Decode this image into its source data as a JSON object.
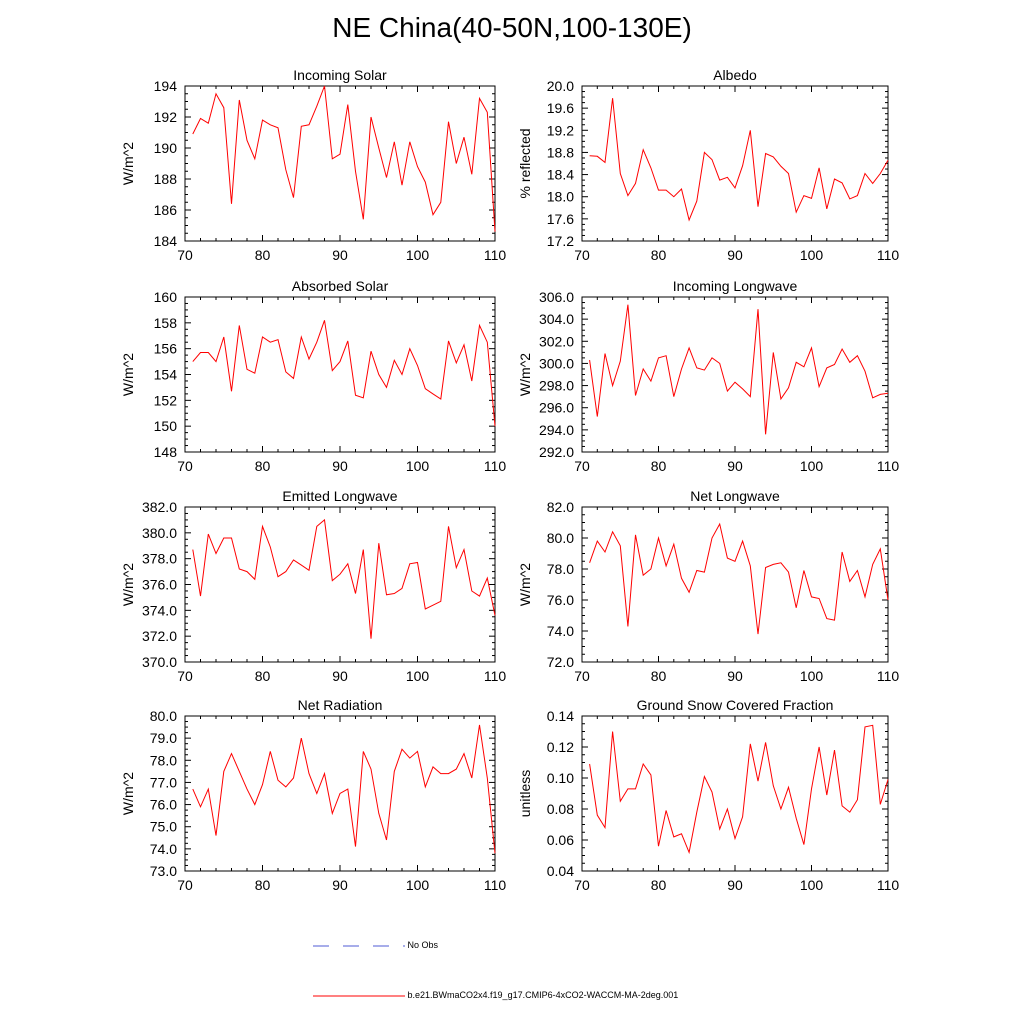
{
  "title": "NE China(40-50N,100-130E)",
  "colors": {
    "series": "#ff0000",
    "obs": "#4f5bd5",
    "axis": "#000000"
  },
  "legend": [
    {
      "label": "No Obs",
      "style": "dashed",
      "color": "#4f5bd5"
    },
    {
      "label": "b.e21.BWmaCO2x4.f19_g17.CMIP6-4xCO2-WACCM-MA-2deg.001",
      "style": "solid",
      "color": "#ff0000"
    }
  ],
  "chart_data": [
    {
      "type": "line",
      "title": "Incoming Solar",
      "ylabel": "W/m^2",
      "xlim": [
        70,
        110
      ],
      "ylim": [
        184,
        194
      ],
      "xticks": [
        "70",
        "80",
        "90",
        "100",
        "110"
      ],
      "yticks": [
        "184",
        "186",
        "188",
        "190",
        "192",
        "194"
      ],
      "x": [
        71,
        72,
        73,
        74,
        75,
        76,
        77,
        78,
        79,
        80,
        81,
        82,
        83,
        84,
        85,
        86,
        87,
        88,
        89,
        90,
        91,
        92,
        93,
        94,
        95,
        96,
        97,
        98,
        99,
        100,
        101,
        102,
        103,
        104,
        105,
        106,
        107,
        108,
        109,
        110
      ],
      "series": [
        {
          "name": "b.e21.BWmaCO2x4.f19_g17.CMIP6-4xCO2-WACCM-MA-2deg.001",
          "values": [
            190.9,
            191.9,
            191.6,
            193.5,
            192.6,
            186.4,
            193.1,
            190.5,
            189.3,
            191.8,
            191.5,
            191.3,
            188.6,
            186.8,
            191.4,
            191.5,
            192.7,
            194.0,
            189.3,
            189.6,
            192.8,
            188.5,
            185.4,
            192.0,
            190.0,
            188.1,
            190.4,
            187.6,
            190.4,
            188.8,
            187.8,
            185.7,
            186.5,
            191.7,
            189.0,
            190.7,
            188.3,
            193.2,
            192.3,
            184.6
          ]
        }
      ]
    },
    {
      "type": "line",
      "title": "Albedo",
      "ylabel": "% reflected",
      "xlim": [
        70,
        110
      ],
      "ylim": [
        17.2,
        20.0
      ],
      "xticks": [
        "70",
        "80",
        "90",
        "100",
        "110"
      ],
      "yticks": [
        "17.2",
        "17.6",
        "18.0",
        "18.4",
        "18.8",
        "19.2",
        "19.6",
        "20.0"
      ],
      "x": [
        71,
        72,
        73,
        74,
        75,
        76,
        77,
        78,
        79,
        80,
        81,
        82,
        83,
        84,
        85,
        86,
        87,
        88,
        89,
        90,
        91,
        92,
        93,
        94,
        95,
        96,
        97,
        98,
        99,
        100,
        101,
        102,
        103,
        104,
        105,
        106,
        107,
        108,
        109,
        110
      ],
      "series": [
        {
          "name": "b.e21.BWmaCO2x4.f19_g17.CMIP6-4xCO2-WACCM-MA-2deg.001",
          "values": [
            18.74,
            18.73,
            18.62,
            19.78,
            18.42,
            18.02,
            18.24,
            18.85,
            18.52,
            18.12,
            18.12,
            18.0,
            18.14,
            17.58,
            17.92,
            18.8,
            18.67,
            18.3,
            18.35,
            18.16,
            18.56,
            19.2,
            17.82,
            18.78,
            18.72,
            18.55,
            18.42,
            17.72,
            18.02,
            17.97,
            18.52,
            17.78,
            18.32,
            18.25,
            17.96,
            18.02,
            18.42,
            18.24,
            18.42,
            18.66
          ]
        }
      ]
    },
    {
      "type": "line",
      "title": "Absorbed Solar",
      "ylabel": "W/m^2",
      "xlim": [
        70,
        110
      ],
      "ylim": [
        148,
        160
      ],
      "xticks": [
        "70",
        "80",
        "90",
        "100",
        "110"
      ],
      "yticks": [
        "148",
        "150",
        "152",
        "154",
        "156",
        "158",
        "160"
      ],
      "x": [
        71,
        72,
        73,
        74,
        75,
        76,
        77,
        78,
        79,
        80,
        81,
        82,
        83,
        84,
        85,
        86,
        87,
        88,
        89,
        90,
        91,
        92,
        93,
        94,
        95,
        96,
        97,
        98,
        99,
        100,
        101,
        102,
        103,
        104,
        105,
        106,
        107,
        108,
        109,
        110
      ],
      "series": [
        {
          "name": "b.e21.BWmaCO2x4.f19_g17.CMIP6-4xCO2-WACCM-MA-2deg.001",
          "values": [
            155.0,
            155.7,
            155.7,
            155.0,
            156.9,
            152.7,
            157.8,
            154.4,
            154.1,
            156.9,
            156.5,
            156.7,
            154.2,
            153.7,
            156.9,
            155.2,
            156.5,
            158.2,
            154.3,
            155.0,
            156.6,
            152.4,
            152.2,
            155.8,
            154.0,
            153.0,
            155.1,
            154.0,
            156.0,
            154.7,
            152.9,
            152.5,
            152.1,
            156.6,
            154.9,
            156.3,
            153.5,
            157.8,
            156.5,
            150.0
          ]
        }
      ]
    },
    {
      "type": "line",
      "title": "Incoming Longwave",
      "ylabel": "W/m^2",
      "xlim": [
        70,
        110
      ],
      "ylim": [
        292.0,
        306.0
      ],
      "xticks": [
        "70",
        "80",
        "90",
        "100",
        "110"
      ],
      "yticks": [
        "292.0",
        "294.0",
        "296.0",
        "298.0",
        "300.0",
        "302.0",
        "304.0",
        "306.0"
      ],
      "x": [
        71,
        72,
        73,
        74,
        75,
        76,
        77,
        78,
        79,
        80,
        81,
        82,
        83,
        84,
        85,
        86,
        87,
        88,
        89,
        90,
        91,
        92,
        93,
        94,
        95,
        96,
        97,
        98,
        99,
        100,
        101,
        102,
        103,
        104,
        105,
        106,
        107,
        108,
        109,
        110
      ],
      "series": [
        {
          "name": "b.e21.BWmaCO2x4.f19_g17.CMIP6-4xCO2-WACCM-MA-2deg.001",
          "values": [
            300.3,
            295.2,
            300.9,
            298.0,
            300.2,
            305.3,
            297.1,
            299.5,
            298.4,
            300.5,
            300.7,
            297.0,
            299.5,
            301.4,
            299.6,
            299.4,
            300.5,
            300.0,
            297.5,
            298.3,
            297.7,
            297.0,
            304.9,
            293.6,
            301.0,
            296.8,
            297.8,
            300.1,
            299.7,
            301.4,
            297.9,
            299.6,
            299.9,
            301.3,
            300.1,
            300.7,
            299.3,
            296.9,
            297.2,
            297.3
          ]
        }
      ]
    },
    {
      "type": "line",
      "title": "Emitted Longwave",
      "ylabel": "W/m^2",
      "xlim": [
        70,
        110
      ],
      "ylim": [
        370.0,
        382.0
      ],
      "xticks": [
        "70",
        "80",
        "90",
        "100",
        "110"
      ],
      "yticks": [
        "370.0",
        "372.0",
        "374.0",
        "376.0",
        "378.0",
        "380.0",
        "382.0"
      ],
      "x": [
        71,
        72,
        73,
        74,
        75,
        76,
        77,
        78,
        79,
        80,
        81,
        82,
        83,
        84,
        85,
        86,
        87,
        88,
        89,
        90,
        91,
        92,
        93,
        94,
        95,
        96,
        97,
        98,
        99,
        100,
        101,
        102,
        103,
        104,
        105,
        106,
        107,
        108,
        109,
        110
      ],
      "series": [
        {
          "name": "b.e21.BWmaCO2x4.f19_g17.CMIP6-4xCO2-WACCM-MA-2deg.001",
          "values": [
            378.7,
            375.1,
            379.9,
            378.4,
            379.6,
            379.6,
            377.2,
            377.0,
            376.4,
            380.5,
            378.9,
            376.6,
            377.0,
            377.9,
            377.5,
            377.1,
            380.5,
            381.0,
            376.3,
            376.8,
            377.6,
            375.3,
            378.7,
            371.8,
            379.2,
            375.2,
            375.3,
            375.7,
            377.6,
            377.7,
            374.1,
            374.4,
            374.7,
            380.5,
            377.3,
            378.7,
            375.5,
            375.1,
            376.5,
            373.6
          ]
        }
      ]
    },
    {
      "type": "line",
      "title": "Net Longwave",
      "ylabel": "W/m^2",
      "xlim": [
        70,
        110
      ],
      "ylim": [
        72.0,
        82.0
      ],
      "xticks": [
        "70",
        "80",
        "90",
        "100",
        "110"
      ],
      "yticks": [
        "72.0",
        "74.0",
        "76.0",
        "78.0",
        "80.0",
        "82.0"
      ],
      "x": [
        71,
        72,
        73,
        74,
        75,
        76,
        77,
        78,
        79,
        80,
        81,
        82,
        83,
        84,
        85,
        86,
        87,
        88,
        89,
        90,
        91,
        92,
        93,
        94,
        95,
        96,
        97,
        98,
        99,
        100,
        101,
        102,
        103,
        104,
        105,
        106,
        107,
        108,
        109,
        110
      ],
      "series": [
        {
          "name": "b.e21.BWmaCO2x4.f19_g17.CMIP6-4xCO2-WACCM-MA-2deg.001",
          "values": [
            78.4,
            79.8,
            79.1,
            80.4,
            79.5,
            74.3,
            80.2,
            77.6,
            78.0,
            80.0,
            78.2,
            79.6,
            77.4,
            76.5,
            77.9,
            77.8,
            80.0,
            80.9,
            78.7,
            78.5,
            79.8,
            78.2,
            73.8,
            78.1,
            78.3,
            78.4,
            77.8,
            75.5,
            77.9,
            76.2,
            76.1,
            74.8,
            74.7,
            79.1,
            77.2,
            77.9,
            76.2,
            78.3,
            79.3,
            76.0
          ]
        }
      ]
    },
    {
      "type": "line",
      "title": "Net Radiation",
      "ylabel": "W/m^2",
      "xlim": [
        70,
        110
      ],
      "ylim": [
        73.0,
        80.0
      ],
      "xticks": [
        "70",
        "80",
        "90",
        "100",
        "110"
      ],
      "yticks": [
        "73.0",
        "74.0",
        "75.0",
        "76.0",
        "77.0",
        "78.0",
        "79.0",
        "80.0"
      ],
      "x": [
        71,
        72,
        73,
        74,
        75,
        76,
        77,
        78,
        79,
        80,
        81,
        82,
        83,
        84,
        85,
        86,
        87,
        88,
        89,
        90,
        91,
        92,
        93,
        94,
        95,
        96,
        97,
        98,
        99,
        100,
        101,
        102,
        103,
        104,
        105,
        106,
        107,
        108,
        109,
        110
      ],
      "series": [
        {
          "name": "b.e21.BWmaCO2x4.f19_g17.CMIP6-4xCO2-WACCM-MA-2deg.001",
          "values": [
            76.7,
            75.9,
            76.7,
            74.6,
            77.5,
            78.3,
            77.5,
            76.7,
            76.0,
            76.9,
            78.4,
            77.1,
            76.8,
            77.2,
            79.0,
            77.4,
            76.5,
            77.4,
            75.6,
            76.5,
            76.7,
            74.1,
            78.4,
            77.6,
            75.6,
            74.4,
            77.5,
            78.5,
            78.1,
            78.4,
            76.8,
            77.7,
            77.4,
            77.4,
            77.6,
            78.3,
            77.2,
            79.6,
            77.2,
            73.8
          ]
        }
      ]
    },
    {
      "type": "line",
      "title": "Ground Snow Covered Fraction",
      "ylabel": "unitless",
      "xlim": [
        70,
        110
      ],
      "ylim": [
        0.04,
        0.14
      ],
      "xticks": [
        "70",
        "80",
        "90",
        "100",
        "110"
      ],
      "yticks": [
        "0.04",
        "0.06",
        "0.08",
        "0.10",
        "0.12",
        "0.14"
      ],
      "x": [
        71,
        72,
        73,
        74,
        75,
        76,
        77,
        78,
        79,
        80,
        81,
        82,
        83,
        84,
        85,
        86,
        87,
        88,
        89,
        90,
        91,
        92,
        93,
        94,
        95,
        96,
        97,
        98,
        99,
        100,
        101,
        102,
        103,
        104,
        105,
        106,
        107,
        108,
        109,
        110
      ],
      "series": [
        {
          "name": "b.e21.BWmaCO2x4.f19_g17.CMIP6-4xCO2-WACCM-MA-2deg.001",
          "values": [
            0.109,
            0.076,
            0.068,
            0.13,
            0.085,
            0.093,
            0.093,
            0.109,
            0.102,
            0.056,
            0.079,
            0.062,
            0.064,
            0.052,
            0.078,
            0.101,
            0.091,
            0.067,
            0.08,
            0.061,
            0.075,
            0.122,
            0.098,
            0.123,
            0.095,
            0.08,
            0.094,
            0.074,
            0.057,
            0.093,
            0.12,
            0.089,
            0.118,
            0.082,
            0.078,
            0.086,
            0.133,
            0.134,
            0.083,
            0.099
          ]
        }
      ]
    }
  ]
}
